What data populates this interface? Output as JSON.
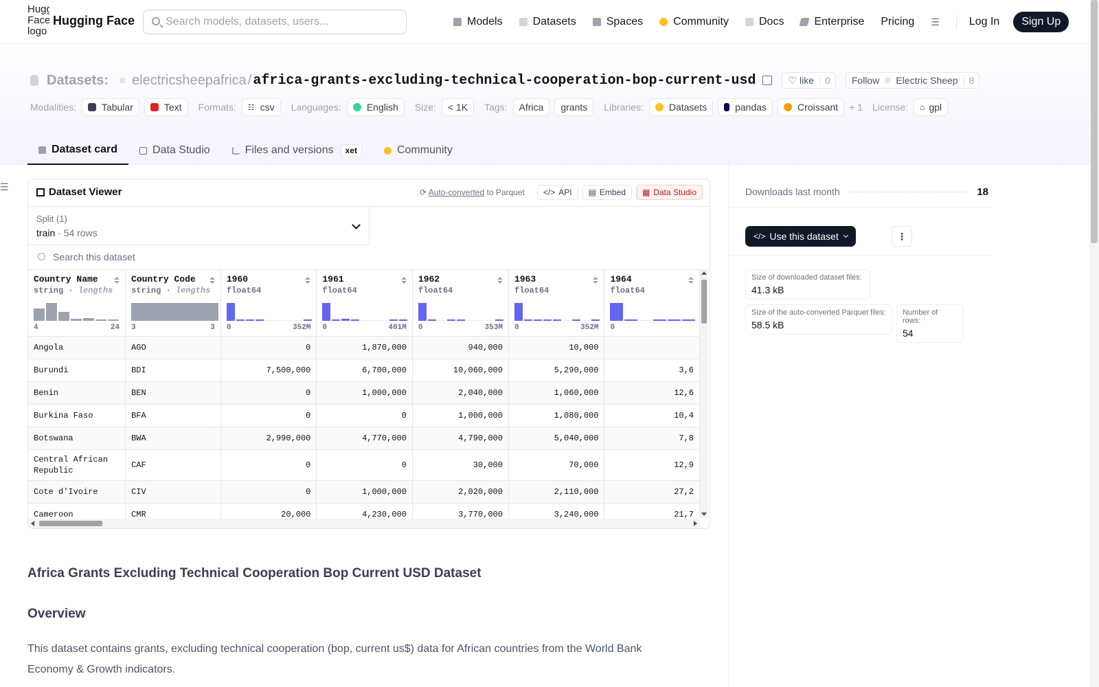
{
  "header": {
    "logo_alt": "Hugging Face logo",
    "brand": "Hugging Face",
    "search_placeholder": "Search models, datasets, users...",
    "nav": [
      {
        "label": "Models",
        "icon": "cube-icon",
        "color": "#9ca3af"
      },
      {
        "label": "Datasets",
        "icon": "database-icon",
        "color": "#d1d5db"
      },
      {
        "label": "Spaces",
        "icon": "grid-icon",
        "color": "#9ca3af"
      },
      {
        "label": "Community",
        "icon": "hf-emoji-icon",
        "color": "#fbbf24"
      },
      {
        "label": "Docs",
        "icon": "book-icon",
        "color": "#d1d5db"
      },
      {
        "label": "Enterprise",
        "icon": "enterprise-icon",
        "color": "#9ca3af"
      },
      {
        "label": "Pricing"
      }
    ],
    "login": "Log In",
    "signup": "Sign Up"
  },
  "repo": {
    "section": "Datasets:",
    "owner": "electricsheepafrica",
    "slash": "/",
    "name": "africa-grants-excluding-technical-cooperation-bop-current-usd",
    "like_label": "like",
    "like_count": "0",
    "follow_label": "Follow",
    "org_name": "Electric Sheep",
    "org_count": "8",
    "meta": {
      "modalities_label": "Modalities:",
      "modalities": [
        "Tabular",
        "Text"
      ],
      "formats_label": "Formats:",
      "format": "csv",
      "languages_label": "Languages:",
      "language": "English",
      "size_label": "Size:",
      "size": "< 1K",
      "tags_label": "Tags:",
      "tags": [
        "Africa",
        "grants"
      ],
      "libraries_label": "Libraries:",
      "libraries": [
        "Datasets",
        "pandas",
        "Croissant"
      ],
      "libraries_more": "+ 1",
      "license_label": "License:",
      "license": "gpl"
    },
    "tabs": [
      "Dataset card",
      "Data Studio",
      "Files and versions",
      "Community"
    ],
    "xet_badge": "xet"
  },
  "viewer": {
    "title": "Dataset Viewer",
    "auto_converted": "Auto-converted",
    "to_parquet": "to Parquet",
    "api": "API",
    "embed": "Embed",
    "data_studio": "Data Studio",
    "split_label": "Split (1)",
    "split_name": "train",
    "split_rows": "54 rows",
    "search_placeholder": "Search this dataset",
    "columns": [
      {
        "name": "Country Name",
        "type": "string",
        "meta": "lengths",
        "min": "4",
        "max": "24",
        "hist": [
          0.7,
          1.0,
          0.5,
          0.1,
          0.15,
          0.05,
          0.05
        ],
        "hist_color": "#9ca3af"
      },
      {
        "name": "Country Code",
        "type": "string",
        "meta": "lengths",
        "min": "3",
        "max": "3",
        "hist": [
          1.0
        ],
        "hist_color": "#9ca3af"
      },
      {
        "name": "1960",
        "type": "float64",
        "min": "0",
        "max": "352M",
        "hist": [
          1.0,
          0.08,
          0.05,
          0.05,
          0,
          0,
          0,
          0,
          0.05
        ],
        "hist_color": "#6366f1"
      },
      {
        "name": "1961",
        "type": "float64",
        "min": "0",
        "max": "401M",
        "hist": [
          1.0,
          0.08,
          0.1,
          0.06,
          0,
          0,
          0,
          0.05,
          0.05
        ],
        "hist_color": "#6366f1"
      },
      {
        "name": "1962",
        "type": "float64",
        "min": "0",
        "max": "353M",
        "hist": [
          1.0,
          0.08,
          0,
          0.05,
          0.05,
          0,
          0,
          0,
          0.05
        ],
        "hist_color": "#6366f1"
      },
      {
        "name": "1963",
        "type": "float64",
        "min": "0",
        "max": "352M",
        "hist": [
          1.0,
          0.08,
          0.05,
          0.05,
          0.05,
          0,
          0.05,
          0,
          0.05
        ],
        "hist_color": "#6366f1"
      },
      {
        "name": "1964",
        "type": "float64",
        "min": "0",
        "max": "",
        "hist": [
          1.0,
          0.08,
          0,
          0.05,
          0.05,
          0.05
        ],
        "hist_color": "#6366f1"
      }
    ],
    "rows": [
      [
        "Angola",
        "AGO",
        "0",
        "1,870,000",
        "940,000",
        "10,000",
        ""
      ],
      [
        "Burundi",
        "BDI",
        "7,500,000",
        "6,700,000",
        "10,060,000",
        "5,290,000",
        "3,6"
      ],
      [
        "Benin",
        "BEN",
        "0",
        "1,000,000",
        "2,040,000",
        "1,060,000",
        "12,6"
      ],
      [
        "Burkina Faso",
        "BFA",
        "0",
        "0",
        "1,000,000",
        "1,080,000",
        "10,4"
      ],
      [
        "Botswana",
        "BWA",
        "2,990,000",
        "4,770,000",
        "4,790,000",
        "5,040,000",
        "7,8"
      ],
      [
        "Central African Republic",
        "CAF",
        "0",
        "0",
        "30,000",
        "70,000",
        "12,9"
      ],
      [
        "Cote d'Ivoire",
        "CIV",
        "0",
        "1,000,000",
        "2,020,000",
        "2,110,000",
        "27,2"
      ],
      [
        "Cameroon",
        "CMR",
        "20,000",
        "4,230,000",
        "3,770,000",
        "3,240,000",
        "21,7"
      ]
    ]
  },
  "card": {
    "h1": "Africa Grants Excluding Technical Cooperation Bop Current USD Dataset",
    "h2": "Overview",
    "p": "This dataset contains grants, excluding technical cooperation (bop, current us$) data for African countries from the World Bank Economy & Growth indicators."
  },
  "sidebar": {
    "downloads_label": "Downloads last month",
    "downloads_value": "18",
    "use_button": "Use this dataset",
    "more": "⋮",
    "stats": {
      "download_size_label": "Size of downloaded dataset files:",
      "download_size": "41.3 kB",
      "parquet_size_label": "Size of the auto-converted Parquet files:",
      "parquet_size": "58.5 kB",
      "rows_label": "Number of rows:",
      "rows": "54"
    }
  }
}
